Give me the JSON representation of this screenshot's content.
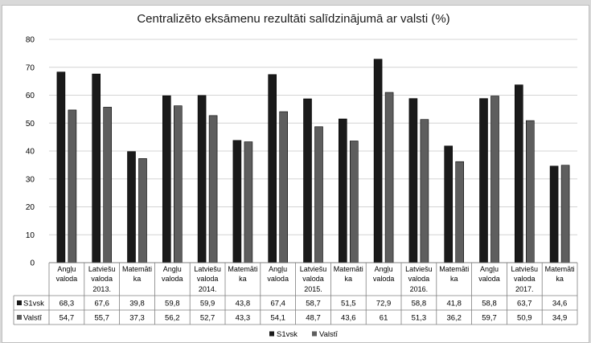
{
  "chart_data": {
    "type": "bar",
    "title": "Centralizēto eksāmenu rezultāti salīdzinājumā ar valsti (%)",
    "ylim": [
      0,
      80
    ],
    "yticks": [
      0,
      10,
      20,
      30,
      40,
      50,
      60,
      70,
      80
    ],
    "grid": true,
    "legend_position": "bottom",
    "categories": [
      {
        "line1": "Angļu",
        "line2": "valoda"
      },
      {
        "line1": "Latviešu",
        "line2": "valoda"
      },
      {
        "line1": "Matemāti",
        "line2": "ka"
      },
      {
        "line1": "Angļu",
        "line2": "valoda"
      },
      {
        "line1": "Latviešu",
        "line2": "valoda"
      },
      {
        "line1": "Matemāti",
        "line2": "ka"
      },
      {
        "line1": "Angļu",
        "line2": "valoda"
      },
      {
        "line1": "Latviešu",
        "line2": "valoda"
      },
      {
        "line1": "Matemāti",
        "line2": "ka"
      },
      {
        "line1": "Angļu",
        "line2": "valoda"
      },
      {
        "line1": "Latviešu",
        "line2": "valoda"
      },
      {
        "line1": "Matemāti",
        "line2": "ka"
      },
      {
        "line1": "Angļu",
        "line2": "valoda"
      },
      {
        "line1": "Latviešu",
        "line2": "valoda"
      },
      {
        "line1": "Matemāti",
        "line2": "ka"
      }
    ],
    "groups": [
      "2013.",
      "2014.",
      "2015.",
      "2016.",
      "2017."
    ],
    "series": [
      {
        "name": "S1vsk",
        "color": "#1a1a1a",
        "values": [
          68.3,
          67.6,
          39.8,
          59.8,
          59.9,
          43.8,
          67.4,
          58.7,
          51.5,
          72.9,
          58.8,
          41.8,
          58.8,
          63.7,
          34.6
        ],
        "labels": [
          "68,3",
          "67,6",
          "39,8",
          "59,8",
          "59,9",
          "43,8",
          "67,4",
          "58,7",
          "51,5",
          "72,9",
          "58,8",
          "41,8",
          "58,8",
          "63,7",
          "34,6"
        ]
      },
      {
        "name": "Valstī",
        "color": "#5e5e5e",
        "values": [
          54.7,
          55.7,
          37.3,
          56.2,
          52.7,
          43.3,
          54.1,
          48.7,
          43.6,
          61,
          51.3,
          36.2,
          59.7,
          50.9,
          34.9
        ],
        "labels": [
          "54,7",
          "55,7",
          "37,3",
          "56,2",
          "52,7",
          "43,3",
          "54,1",
          "48,7",
          "43,6",
          "61",
          "51,3",
          "36,2",
          "59,7",
          "50,9",
          "34,9"
        ]
      }
    ]
  }
}
